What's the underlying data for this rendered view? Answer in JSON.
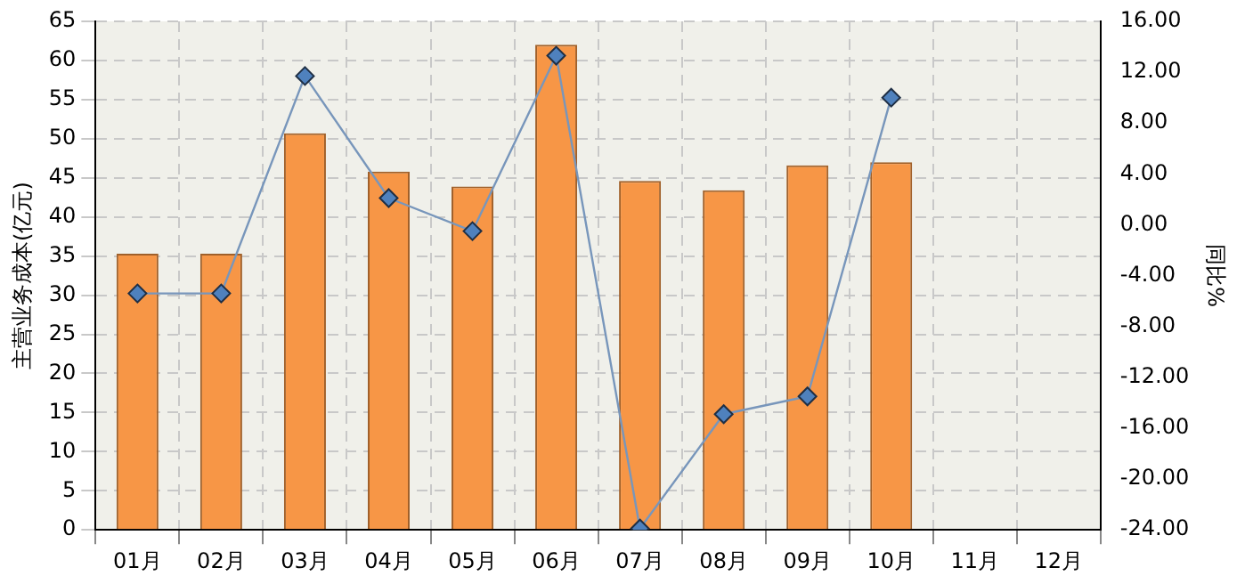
{
  "chart_data": {
    "type": "bar",
    "ylabel": "主营业务成本(亿元)",
    "y2label": "同比%",
    "categories": [
      "01月",
      "02月",
      "03月",
      "04月",
      "05月",
      "06月",
      "07月",
      "08月",
      "09月",
      "10月",
      "11月",
      "12月"
    ],
    "series": [
      {
        "color": "#f79646",
        "values": [
          35.3,
          35.3,
          50.7,
          45.8,
          43.9,
          62.0,
          44.6,
          43.4,
          46.6,
          47.0,
          null,
          null
        ]
      },
      {
        "type": "line",
        "axis": "y2",
        "color": "#4f81bd",
        "marker": "diamond",
        "values": [
          -5.4,
          -5.4,
          11.7,
          2.1,
          -0.5,
          13.3,
          -23.9,
          -14.9,
          -13.5,
          10.0,
          null,
          null
        ]
      }
    ],
    "ylim": [
      0,
      65
    ],
    "yticks": [
      0,
      5,
      10,
      15,
      20,
      25,
      30,
      35,
      40,
      45,
      50,
      55,
      60,
      65
    ],
    "y2lim": [
      -24,
      16
    ],
    "y2ticks": [
      {
        "value": -24,
        "label": "-24.00"
      },
      {
        "value": -20,
        "label": "-20.00"
      },
      {
        "value": -16,
        "label": "-16.00"
      },
      {
        "value": -12,
        "label": "-12.00"
      },
      {
        "value": -8,
        "label": "-8.00"
      },
      {
        "value": -4,
        "label": "-4.00"
      },
      {
        "value": 0,
        "label": "0.00"
      },
      {
        "value": 4,
        "label": "4.00"
      },
      {
        "value": 8,
        "label": "8.00"
      },
      {
        "value": 12,
        "label": "12.00"
      },
      {
        "value": 16,
        "label": "16.00"
      }
    ],
    "grid": true,
    "legend": false
  }
}
